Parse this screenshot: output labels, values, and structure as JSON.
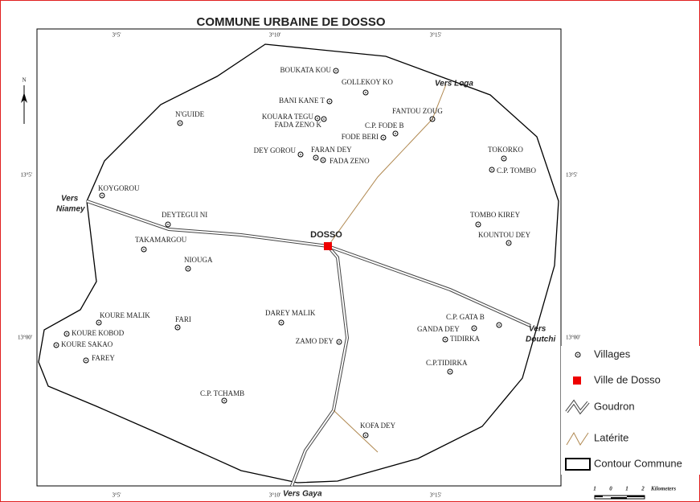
{
  "header": {
    "title": "COMMUNE URBAINE DE DOSSO",
    "north": "N"
  },
  "coordinates": {
    "top": [
      "3°5'",
      "3°10'",
      "3°15'"
    ],
    "bottom": [
      "3°5'",
      "3°10'",
      "3°15'"
    ],
    "left": [
      "13°5'",
      "13°00'"
    ],
    "right": [
      "13°5'",
      "13°00'"
    ]
  },
  "city": "DOSSO",
  "villages": [
    "BOUKATA KOU",
    "GOLLEKOY KO",
    "BANI KANE T",
    "KOUARA TEGU",
    "FADA ZENO K",
    "FANTOU ZOUG",
    "C.P. FODE B",
    "FODE BERI",
    "DEY GOROU",
    "FARAN DEY",
    "FADA ZENO",
    "TOKORKO",
    "C.P. TOMBO",
    "N'GUIDE",
    "KOYGOROU",
    "DEYTEGUI NI",
    "TAKAMARGOU",
    "NIOUGA",
    "TOMBO KIREY",
    "KOUNTOU DEY",
    "KOURE MALIK",
    "FARI",
    "DAREY MALIK",
    "KOURE KOBOD",
    "KOURE SAKAO",
    "FAREY",
    "ZAMO DEY",
    "C.P. GATA B",
    "GANDA DEY",
    "TIDIRKA",
    "C.P.TIDIRKA",
    "C.P. TCHAMB",
    "KOFA DEY"
  ],
  "directions": {
    "loga": "Vers Loga",
    "niamey": [
      "Vers",
      "Niamey"
    ],
    "doutchi": [
      "Vers",
      "Doutchi"
    ],
    "gaya": "Vers Gaya"
  },
  "legend": [
    "Villages",
    "Ville de Dosso",
    "Goudron",
    "Latérite",
    "Contour Commune"
  ],
  "scale": {
    "ticks": [
      "1",
      "0",
      "1",
      "2"
    ],
    "unit": "Kilometers"
  }
}
